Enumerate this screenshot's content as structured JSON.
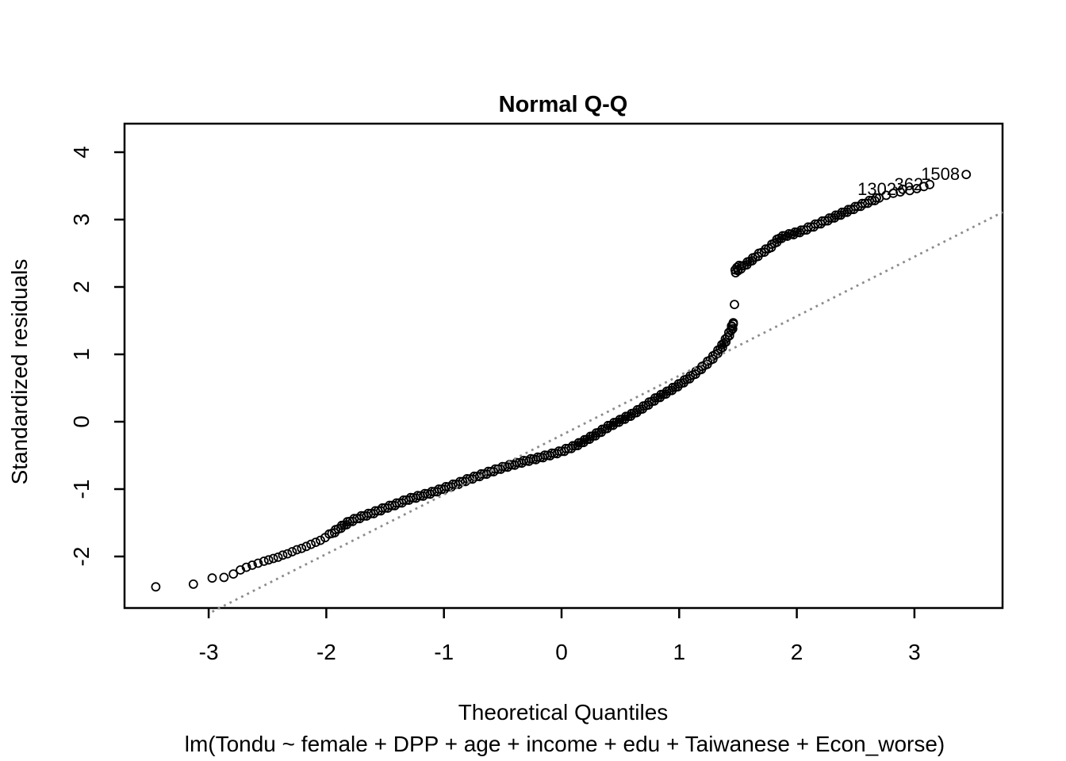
{
  "chart_data": {
    "type": "scatter",
    "title": "Normal Q-Q",
    "xlabel": "Theoretical Quantiles",
    "ylabel": "Standardized residuals",
    "subtitle": "lm(Tondu ~ female + DPP + age + income + edu + Taiwanese + Econ_worse)",
    "x_axis": {
      "ticks": [
        -3,
        -2,
        -1,
        0,
        1,
        2,
        3
      ],
      "range": [
        -3.72,
        3.75
      ]
    },
    "y_axis": {
      "ticks": [
        -2,
        -1,
        0,
        1,
        2,
        3,
        4
      ],
      "range": [
        -2.76,
        4.42
      ]
    },
    "grid": false,
    "legend": null,
    "marker": {
      "shape": "open-circle",
      "color": "#000000",
      "radius_px": 5,
      "stroke_px": 1.8
    },
    "reference_line": {
      "style": "dotted",
      "color": "#8c8c8c",
      "x1": -2.97,
      "y1": -2.82,
      "x2": 3.75,
      "y2": 3.11
    },
    "labeled_points": [
      {
        "label": "1302",
        "x": 2.9,
        "y": 3.45
      },
      {
        "label": "362",
        "x": 3.13,
        "y": 3.52
      },
      {
        "label": "1508",
        "x": 3.44,
        "y": 3.67
      }
    ],
    "outlier_gap_point": [
      [
        1.47,
        1.74
      ]
    ],
    "lower_tail_points": [
      [
        -3.45,
        -2.45
      ],
      [
        -3.13,
        -2.41
      ],
      [
        -2.97,
        -2.32
      ],
      [
        -2.87,
        -2.31
      ],
      [
        -2.79,
        -2.26
      ],
      [
        -2.73,
        -2.2
      ],
      [
        -2.68,
        -2.16
      ],
      [
        -2.63,
        -2.13
      ],
      [
        -2.58,
        -2.1
      ],
      [
        -2.53,
        -2.07
      ],
      [
        -2.49,
        -2.05
      ],
      [
        -2.45,
        -2.03
      ],
      [
        -2.41,
        -2.01
      ],
      [
        -2.37,
        -1.98
      ],
      [
        -2.33,
        -1.96
      ],
      [
        -2.29,
        -1.93
      ],
      [
        -2.25,
        -1.9
      ],
      [
        -2.21,
        -1.88
      ],
      [
        -2.17,
        -1.85
      ],
      [
        -2.13,
        -1.82
      ],
      [
        -2.09,
        -1.79
      ],
      [
        -2.05,
        -1.76
      ],
      [
        -2.01,
        -1.72
      ]
    ],
    "dense_band_lower": [
      [
        -1.97,
        -1.68
      ],
      [
        -1.88,
        -1.57
      ],
      [
        -1.8,
        -1.48
      ],
      [
        -1.7,
        -1.41
      ],
      [
        -1.6,
        -1.35
      ],
      [
        -1.5,
        -1.28
      ],
      [
        -1.4,
        -1.22
      ],
      [
        -1.3,
        -1.15
      ],
      [
        -1.2,
        -1.1
      ],
      [
        -1.1,
        -1.05
      ],
      [
        -1.0,
        -0.99
      ],
      [
        -0.9,
        -0.93
      ],
      [
        -0.8,
        -0.86
      ],
      [
        -0.7,
        -0.8
      ],
      [
        -0.6,
        -0.74
      ],
      [
        -0.5,
        -0.68
      ],
      [
        -0.4,
        -0.63
      ],
      [
        -0.3,
        -0.58
      ],
      [
        -0.2,
        -0.54
      ],
      [
        -0.1,
        -0.49
      ],
      [
        0.0,
        -0.44
      ],
      [
        0.1,
        -0.37
      ],
      [
        0.2,
        -0.28
      ],
      [
        0.3,
        -0.18
      ],
      [
        0.4,
        -0.07
      ],
      [
        0.5,
        0.02
      ],
      [
        0.6,
        0.11
      ],
      [
        0.7,
        0.22
      ],
      [
        0.8,
        0.34
      ],
      [
        0.9,
        0.44
      ],
      [
        1.0,
        0.55
      ],
      [
        1.1,
        0.67
      ],
      [
        1.2,
        0.81
      ],
      [
        1.28,
        0.94
      ],
      [
        1.35,
        1.08
      ],
      [
        1.4,
        1.22
      ],
      [
        1.44,
        1.35
      ],
      [
        1.46,
        1.45
      ]
    ],
    "gap_shoulder_points": [
      [
        1.44,
        1.36
      ],
      [
        1.45,
        1.41
      ],
      [
        1.46,
        1.47
      ]
    ],
    "upper_start_cluster": [
      [
        1.48,
        2.21
      ],
      [
        1.49,
        2.29
      ],
      [
        1.5,
        2.24
      ],
      [
        1.51,
        2.32
      ]
    ],
    "dense_band_upper": [
      [
        1.48,
        2.24
      ],
      [
        1.52,
        2.28
      ],
      [
        1.57,
        2.34
      ],
      [
        1.63,
        2.42
      ],
      [
        1.7,
        2.51
      ],
      [
        1.76,
        2.57
      ],
      [
        1.81,
        2.65
      ],
      [
        1.85,
        2.72
      ],
      [
        1.9,
        2.76
      ],
      [
        1.97,
        2.79
      ],
      [
        2.04,
        2.83
      ],
      [
        2.12,
        2.89
      ],
      [
        2.2,
        2.95
      ],
      [
        2.28,
        3.01
      ],
      [
        2.37,
        3.08
      ],
      [
        2.46,
        3.15
      ],
      [
        2.54,
        3.21
      ],
      [
        2.62,
        3.27
      ],
      [
        2.7,
        3.32
      ]
    ],
    "upper_tail_points": [
      [
        2.76,
        3.36
      ],
      [
        2.82,
        3.39
      ],
      [
        2.88,
        3.41
      ],
      [
        2.96,
        3.43
      ],
      [
        3.02,
        3.46
      ],
      [
        3.08,
        3.49
      ]
    ],
    "colors": {
      "marker": "#000000",
      "reference_line": "#8c8c8c",
      "text": "#000000",
      "background": "#ffffff"
    }
  }
}
